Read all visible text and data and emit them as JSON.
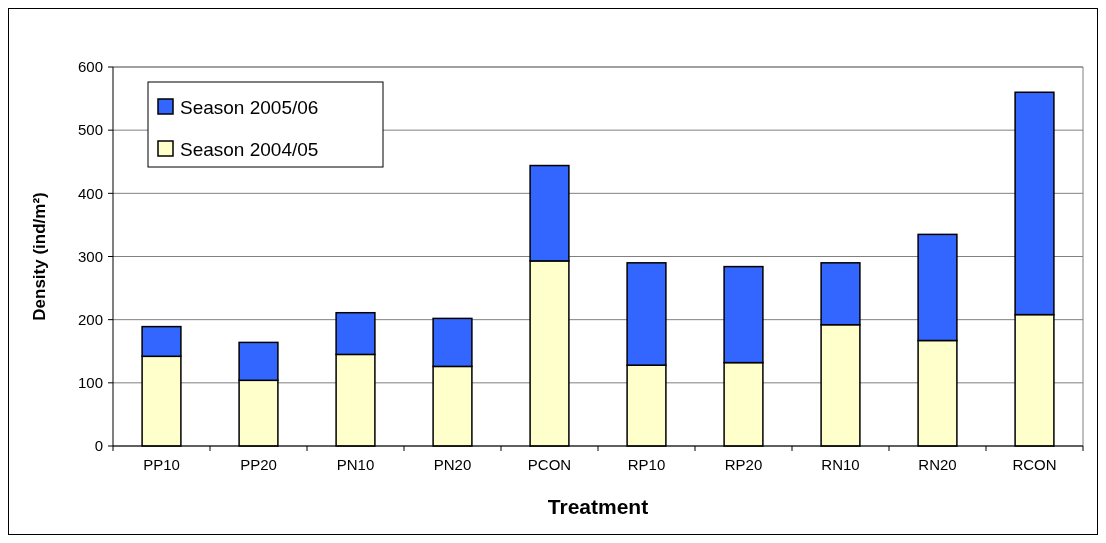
{
  "chart_data": {
    "type": "bar",
    "stacked": true,
    "xlabel": "Treatment",
    "ylabel": "Density (ind/m²)",
    "categories": [
      "PP10",
      "PP20",
      "PN10",
      "PN20",
      "PCON",
      "RP10",
      "RP20",
      "RN10",
      "RN20",
      "RCON"
    ],
    "series": [
      {
        "name": "Season 2004/05",
        "color": "#ffffcc",
        "values": [
          142,
          104,
          145,
          126,
          293,
          128,
          132,
          192,
          167,
          208
        ]
      },
      {
        "name": "Season 2005/06",
        "color": "#3366ff",
        "values": [
          47,
          60,
          66,
          76,
          151,
          162,
          152,
          98,
          168,
          352
        ]
      }
    ],
    "ylim": [
      0,
      600
    ],
    "yticks": [
      0,
      100,
      200,
      300,
      400,
      500,
      600
    ],
    "grid": "y",
    "legend": "top left"
  }
}
